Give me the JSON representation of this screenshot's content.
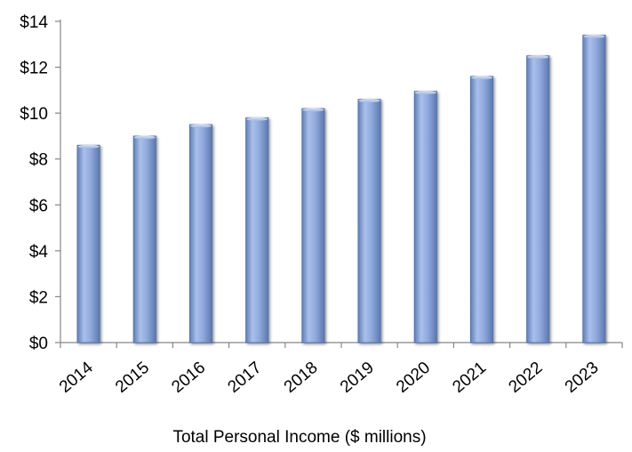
{
  "chart_data": {
    "type": "bar",
    "title": "",
    "xlabel": "Total Personal Income ($ millions)",
    "ylabel": "",
    "categories": [
      "2014",
      "2015",
      "2016",
      "2017",
      "2018",
      "2019",
      "2020",
      "2021",
      "2022",
      "2023"
    ],
    "values": [
      8.6,
      9.0,
      9.5,
      9.8,
      10.2,
      10.6,
      10.95,
      11.6,
      12.5,
      13.4
    ],
    "ylim": [
      0,
      14
    ],
    "yticks": [
      0,
      2,
      4,
      6,
      8,
      10,
      12,
      14
    ],
    "ytick_labels": [
      "$0",
      "$2",
      "$4",
      "$6",
      "$8",
      "$10",
      "$12",
      "$14"
    ],
    "grid": false,
    "legend": "none",
    "bar_color": "#8fa9dc",
    "bar_edge_color": "#4f6fa8"
  }
}
